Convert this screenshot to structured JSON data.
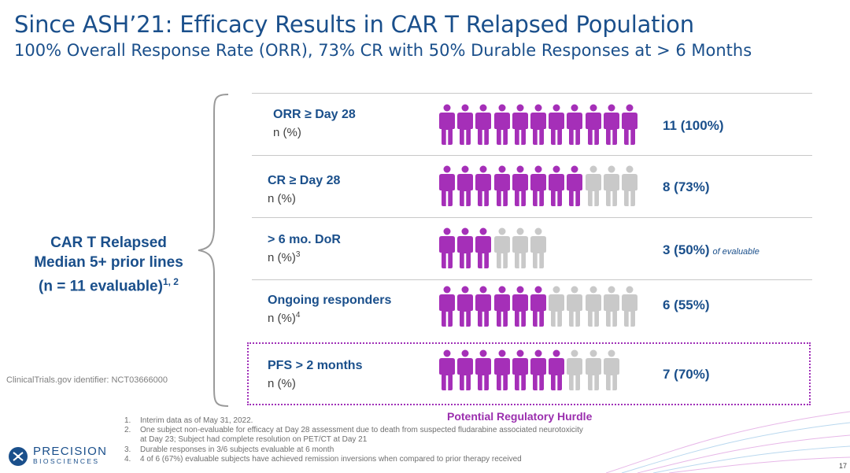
{
  "header": {
    "title": "Since ASH’21: Efficacy Results in CAR T Relapsed Population",
    "subtitle": "100% Overall Response Rate (ORR), 73% CR with 50% Durable Responses at > 6 Months"
  },
  "population": {
    "line1": "CAR T Relapsed",
    "line2": "Median 5+ prior lines",
    "line3": "(n = 11 evaluable)",
    "sup": "1, 2"
  },
  "clinical_trial_id": "ClinicalTrials.gov identifier: NCT03666000",
  "rows": [
    {
      "label": "ORR ≥ Day 28",
      "sub": "n (%)",
      "sub_sup": "",
      "value": "11 (100%)",
      "note": "",
      "total": 11,
      "responders": 11
    },
    {
      "label": "CR ≥ Day 28",
      "sub": "n (%)",
      "sub_sup": "",
      "value": "8 (73%)",
      "note": "",
      "total": 11,
      "responders": 8
    },
    {
      "label": "> 6 mo. DoR",
      "sub": "n (%)",
      "sub_sup": "3",
      "value": "3 (50%)",
      "note": "of evaluable",
      "total": 6,
      "responders": 3
    },
    {
      "label": "Ongoing responders",
      "sub": "n (%)",
      "sub_sup": "4",
      "value": "6 (55%)",
      "note": "",
      "total": 11,
      "responders": 6
    },
    {
      "label": "PFS > 2 months",
      "sub": "n (%)",
      "sub_sup": "",
      "value": "7 (70%)",
      "note": "",
      "total": 10,
      "responders": 7
    }
  ],
  "hurdle_label": "Potential Regulatory Hurdle",
  "footnotes": [
    {
      "num": "1.",
      "text": "Interim data as of May 31, 2022.",
      "cont": ""
    },
    {
      "num": "2.",
      "text": "One subject non-evaluable for efficacy at Day 28 assessment due to death from suspected fludarabine associated neurotoxicity",
      "cont": "at Day 23; Subject had complete resolution on PET/CT at Day 21"
    },
    {
      "num": "3.",
      "text": "Durable responses in 3/6 subjects evaluable at 6 month",
      "cont": ""
    },
    {
      "num": "4.",
      "text": "4 of 6 (67%) evaluable subjects have achieved remission inversions when compared to prior therapy received",
      "cont": ""
    }
  ],
  "logo": {
    "main": "PRECISION",
    "sub": "BIOSCIENCES"
  },
  "page_number": "17",
  "colors": {
    "responder": "#a52fb8",
    "non_responder": "#c9c9c9",
    "text_blue": "#1a4f8b",
    "hurdle": "#9b2fae"
  },
  "icons": {
    "person": "person-icon",
    "logo": "dna-logo-icon"
  }
}
